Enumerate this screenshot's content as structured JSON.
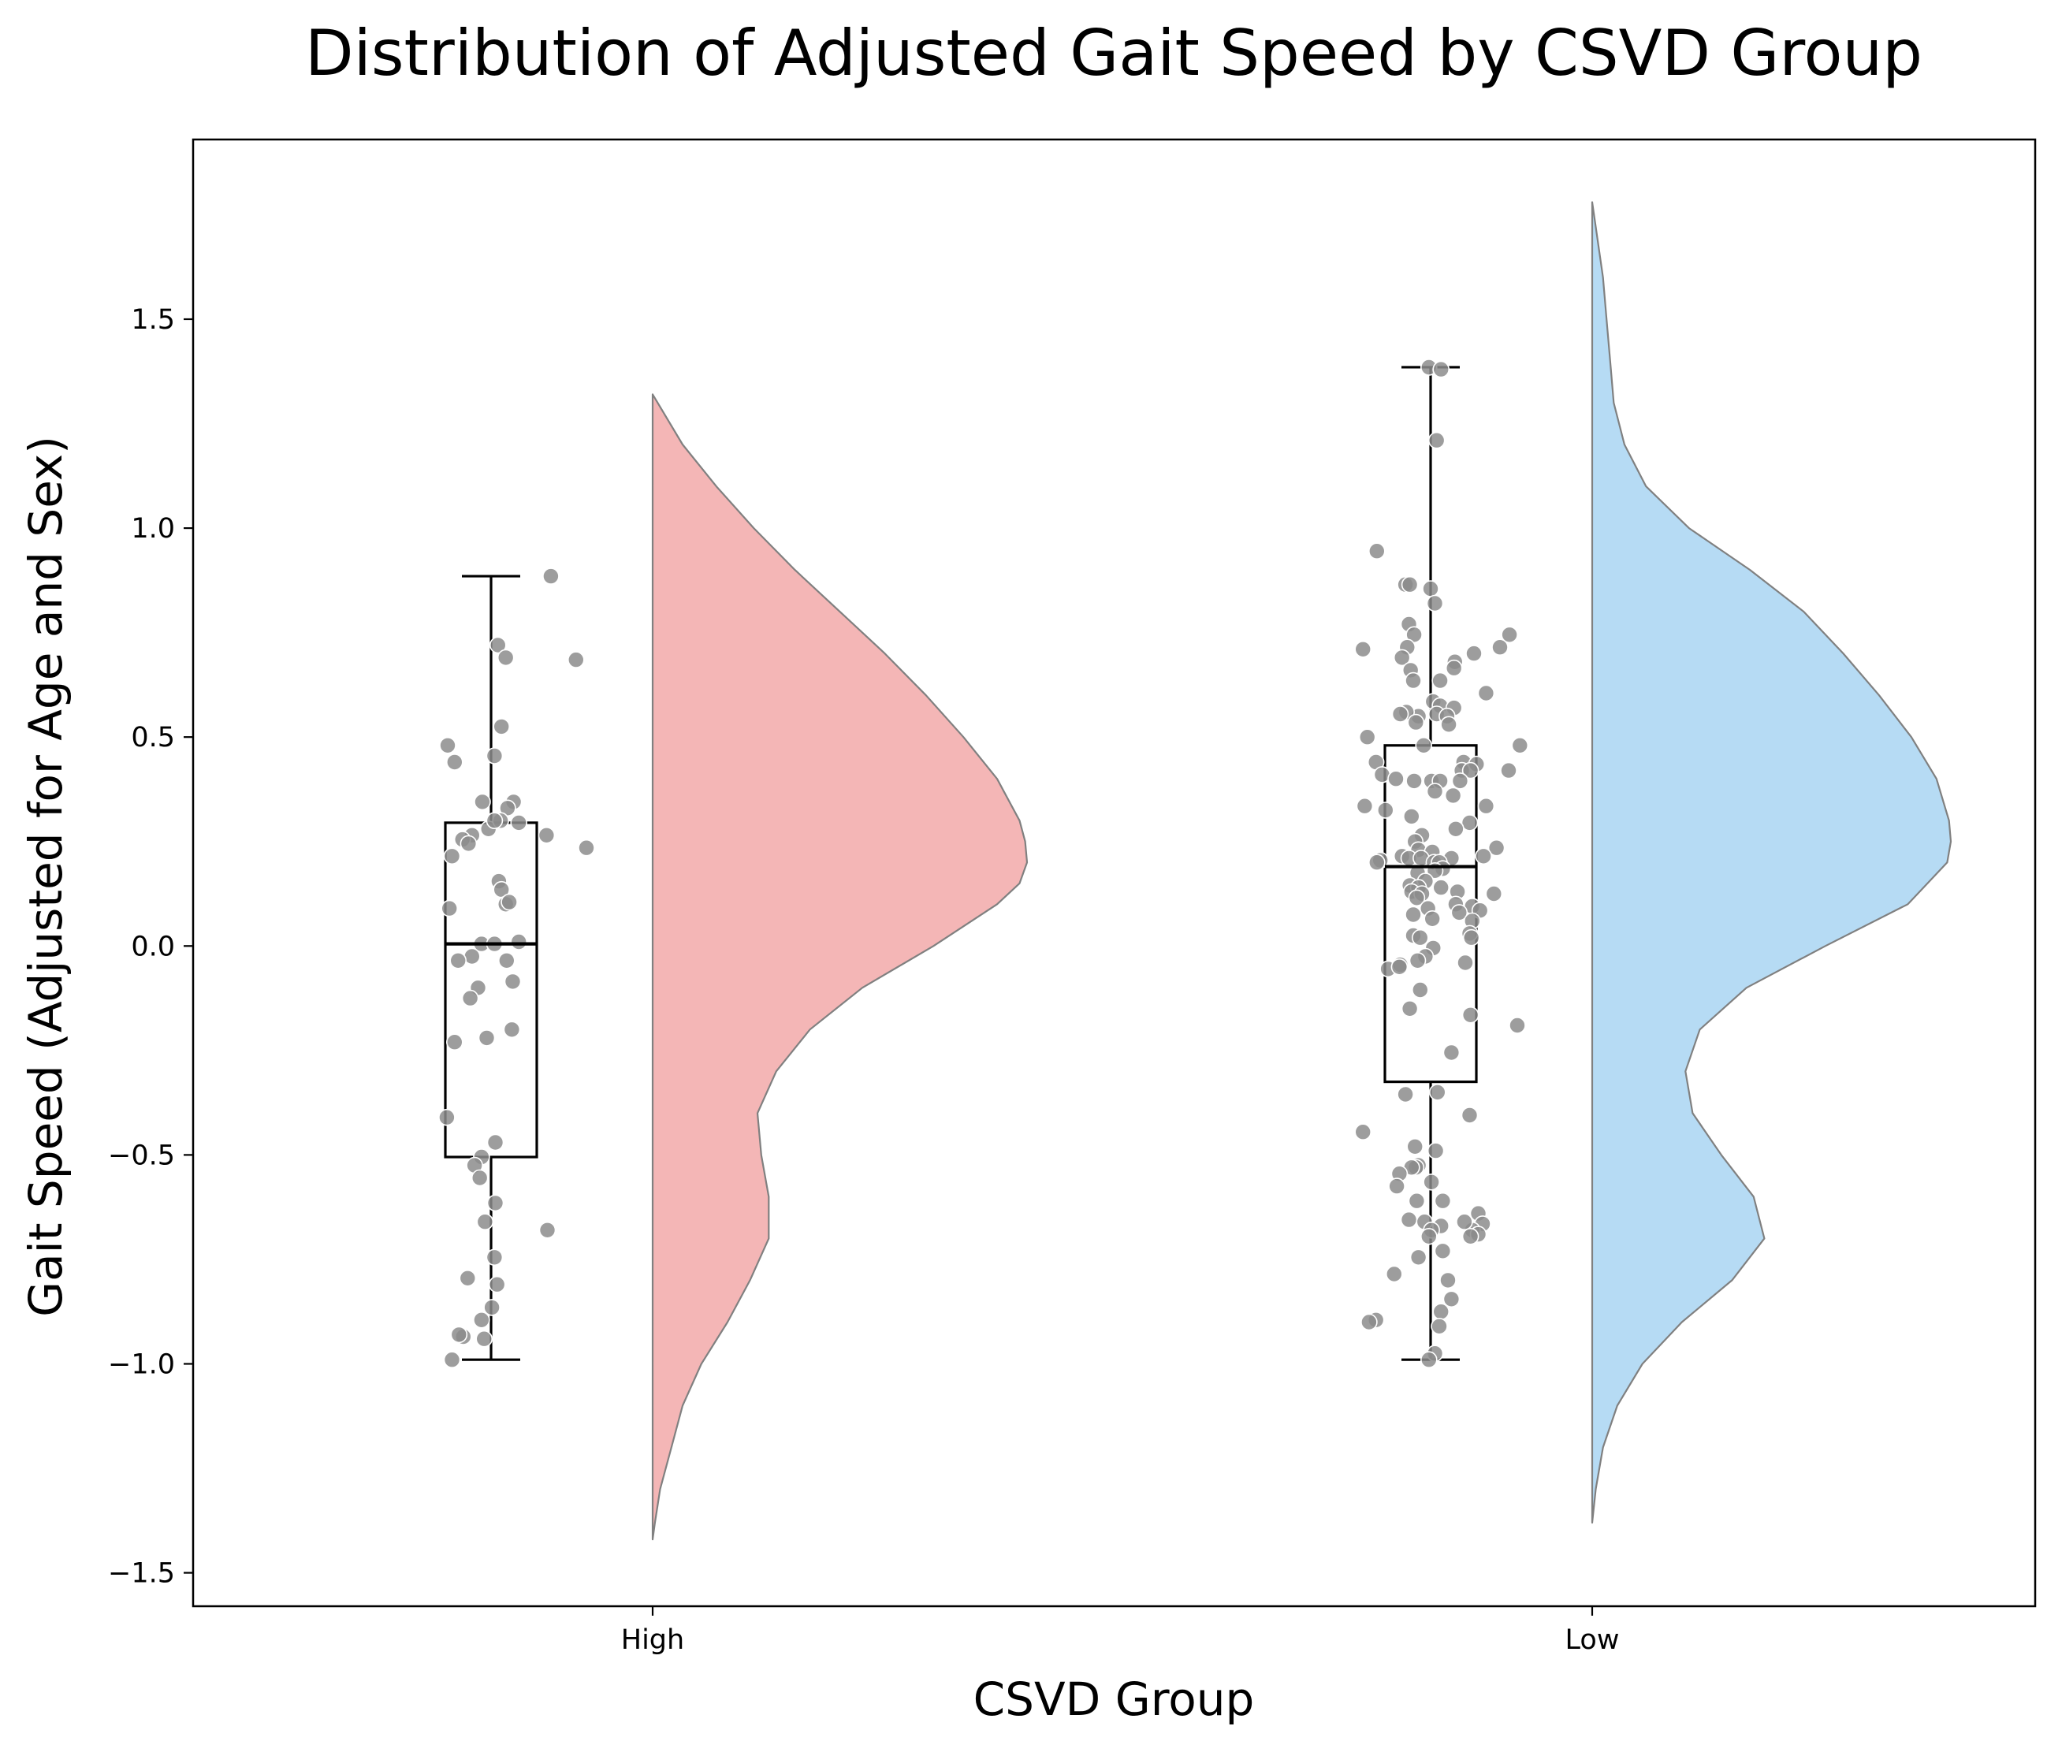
{
  "chart_data": {
    "type": "raincloud",
    "title": "Distribution of Adjusted Gait Speed by CSVD Group",
    "xlabel": "CSVD Group",
    "ylabel": "Gait Speed (Adjusted for Age and Sex)",
    "ylim": [
      -1.58,
      1.93
    ],
    "yticks": [
      -1.5,
      -1.0,
      -0.5,
      0.0,
      0.5,
      1.0,
      1.5
    ],
    "ytick_labels": [
      "−1.5",
      "−1.0",
      "−0.5",
      "0.0",
      "0.5",
      "1.0",
      "1.5"
    ],
    "categories": [
      "High",
      "Low"
    ],
    "grid": false,
    "legend": "none",
    "colors": {
      "High": "#f4b6b6",
      "Low": "#b6dbf4",
      "points": "#8c8c8c",
      "violin_edge": "#808080"
    },
    "groups": [
      {
        "name": "High",
        "box": {
          "whislo": -0.99,
          "q1": -0.505,
          "median": 0.005,
          "q3": 0.295,
          "whishi": 0.885
        },
        "density": {
          "y": [
            1.32,
            1.2,
            1.1,
            1.0,
            0.9,
            0.8,
            0.7,
            0.6,
            0.5,
            0.4,
            0.3,
            0.25,
            0.2,
            0.15,
            0.1,
            0.0,
            -0.1,
            -0.2,
            -0.3,
            -0.4,
            -0.5,
            -0.6,
            -0.7,
            -0.8,
            -0.9,
            -1.0,
            -1.1,
            -1.2,
            -1.3,
            -1.38,
            -1.42
          ],
          "width": [
            0.0,
            0.08,
            0.17,
            0.27,
            0.38,
            0.5,
            0.62,
            0.73,
            0.83,
            0.92,
            0.98,
            0.995,
            1.0,
            0.98,
            0.92,
            0.75,
            0.56,
            0.42,
            0.33,
            0.28,
            0.29,
            0.31,
            0.31,
            0.26,
            0.2,
            0.13,
            0.08,
            0.05,
            0.02,
            0.006,
            0.0
          ]
        },
        "points": [
          {
            "x": 0.69,
            "y": 0.885
          },
          {
            "x": 0.08,
            "y": 0.72
          },
          {
            "x": 0.98,
            "y": 0.685
          },
          {
            "x": 0.17,
            "y": 0.69
          },
          {
            "x": 0.12,
            "y": 0.525
          },
          {
            "x": -0.5,
            "y": 0.48
          },
          {
            "x": -0.42,
            "y": 0.44
          },
          {
            "x": 0.04,
            "y": 0.455
          },
          {
            "x": -0.1,
            "y": 0.345
          },
          {
            "x": 0.26,
            "y": 0.345
          },
          {
            "x": 0.19,
            "y": 0.33
          },
          {
            "x": 0.32,
            "y": 0.295
          },
          {
            "x": -0.03,
            "y": 0.28
          },
          {
            "x": 0.11,
            "y": 0.3
          },
          {
            "x": 0.04,
            "y": 0.3
          },
          {
            "x": -0.22,
            "y": 0.265
          },
          {
            "x": -0.33,
            "y": 0.255
          },
          {
            "x": -0.26,
            "y": 0.245
          },
          {
            "x": 0.64,
            "y": 0.265
          },
          {
            "x": 1.1,
            "y": 0.235
          },
          {
            "x": -0.45,
            "y": 0.215
          },
          {
            "x": 0.09,
            "y": 0.155
          },
          {
            "x": 0.12,
            "y": 0.135
          },
          {
            "x": 0.17,
            "y": 0.1
          },
          {
            "x": 0.21,
            "y": 0.105
          },
          {
            "x": -0.48,
            "y": 0.09
          },
          {
            "x": 0.32,
            "y": 0.01
          },
          {
            "x": -0.11,
            "y": 0.005
          },
          {
            "x": 0.04,
            "y": 0.005
          },
          {
            "x": -0.22,
            "y": -0.025
          },
          {
            "x": -0.38,
            "y": -0.035
          },
          {
            "x": 0.18,
            "y": -0.035
          },
          {
            "x": 0.25,
            "y": -0.085
          },
          {
            "x": -0.15,
            "y": -0.1
          },
          {
            "x": -0.24,
            "y": -0.125
          },
          {
            "x": 0.24,
            "y": -0.2
          },
          {
            "x": -0.05,
            "y": -0.22
          },
          {
            "x": -0.42,
            "y": -0.23
          },
          {
            "x": -0.51,
            "y": -0.41
          },
          {
            "x": 0.05,
            "y": -0.47
          },
          {
            "x": -0.11,
            "y": -0.505
          },
          {
            "x": -0.19,
            "y": -0.525
          },
          {
            "x": -0.13,
            "y": -0.555
          },
          {
            "x": 0.05,
            "y": -0.615
          },
          {
            "x": -0.07,
            "y": -0.66
          },
          {
            "x": 0.65,
            "y": -0.68
          },
          {
            "x": 0.04,
            "y": -0.745
          },
          {
            "x": 0.07,
            "y": -0.81
          },
          {
            "x": -0.27,
            "y": -0.795
          },
          {
            "x": 0.01,
            "y": -0.865
          },
          {
            "x": -0.11,
            "y": -0.895
          },
          {
            "x": -0.32,
            "y": -0.935
          },
          {
            "x": -0.37,
            "y": -0.93
          },
          {
            "x": -0.08,
            "y": -0.94
          },
          {
            "x": -0.45,
            "y": -0.99
          }
        ]
      },
      {
        "name": "Low",
        "box": {
          "whislo": -0.99,
          "q1": -0.325,
          "median": 0.19,
          "q3": 0.48,
          "whishi": 1.385
        },
        "density": {
          "y": [
            1.78,
            1.6,
            1.5,
            1.4,
            1.3,
            1.2,
            1.1,
            1.0,
            0.9,
            0.8,
            0.7,
            0.6,
            0.5,
            0.4,
            0.3,
            0.25,
            0.2,
            0.1,
            0.0,
            -0.1,
            -0.2,
            -0.3,
            -0.4,
            -0.5,
            -0.6,
            -0.7,
            -0.8,
            -0.9,
            -1.0,
            -1.1,
            -1.2,
            -1.3,
            -1.38
          ],
          "width": [
            0.0,
            0.03,
            0.04,
            0.05,
            0.06,
            0.09,
            0.15,
            0.27,
            0.44,
            0.59,
            0.7,
            0.8,
            0.89,
            0.96,
            0.995,
            1.0,
            0.99,
            0.88,
            0.65,
            0.43,
            0.3,
            0.26,
            0.28,
            0.36,
            0.45,
            0.48,
            0.39,
            0.25,
            0.14,
            0.07,
            0.03,
            0.01,
            0.0
          ]
        },
        "points": [
          {
            "x": -0.02,
            "y": 1.385
          },
          {
            "x": 0.12,
            "y": 1.38
          },
          {
            "x": 0.07,
            "y": 1.21
          },
          {
            "x": -0.62,
            "y": 0.945
          },
          {
            "x": -0.29,
            "y": 0.865
          },
          {
            "x": -0.24,
            "y": 0.865
          },
          {
            "x": 0.0,
            "y": 0.855
          },
          {
            "x": 0.05,
            "y": 0.82
          },
          {
            "x": -0.25,
            "y": 0.77
          },
          {
            "x": 0.91,
            "y": 0.745
          },
          {
            "x": -0.19,
            "y": 0.745
          },
          {
            "x": -0.27,
            "y": 0.715
          },
          {
            "x": -0.78,
            "y": 0.71
          },
          {
            "x": 0.8,
            "y": 0.715
          },
          {
            "x": 0.5,
            "y": 0.7
          },
          {
            "x": -0.33,
            "y": 0.69
          },
          {
            "x": 0.28,
            "y": 0.68
          },
          {
            "x": 0.27,
            "y": 0.665
          },
          {
            "x": -0.23,
            "y": 0.66
          },
          {
            "x": -0.2,
            "y": 0.635
          },
          {
            "x": 0.11,
            "y": 0.635
          },
          {
            "x": 0.64,
            "y": 0.605
          },
          {
            "x": 0.03,
            "y": 0.585
          },
          {
            "x": 0.11,
            "y": 0.575
          },
          {
            "x": 0.27,
            "y": 0.57
          },
          {
            "x": 0.07,
            "y": 0.555
          },
          {
            "x": -0.14,
            "y": 0.55
          },
          {
            "x": -0.28,
            "y": 0.56
          },
          {
            "x": 0.19,
            "y": 0.55
          },
          {
            "x": -0.35,
            "y": 0.555
          },
          {
            "x": -0.17,
            "y": 0.535
          },
          {
            "x": 0.21,
            "y": 0.53
          },
          {
            "x": 1.03,
            "y": 0.48
          },
          {
            "x": -0.08,
            "y": 0.48
          },
          {
            "x": -0.73,
            "y": 0.5
          },
          {
            "x": -0.63,
            "y": 0.44
          },
          {
            "x": 0.38,
            "y": 0.44
          },
          {
            "x": 0.53,
            "y": 0.435
          },
          {
            "x": 0.36,
            "y": 0.42
          },
          {
            "x": 0.46,
            "y": 0.42
          },
          {
            "x": 0.9,
            "y": 0.42
          },
          {
            "x": -0.56,
            "y": 0.41
          },
          {
            "x": -0.4,
            "y": 0.4
          },
          {
            "x": 0.34,
            "y": 0.395
          },
          {
            "x": 0.01,
            "y": 0.395
          },
          {
            "x": -0.19,
            "y": 0.395
          },
          {
            "x": 0.11,
            "y": 0.395
          },
          {
            "x": 0.05,
            "y": 0.37
          },
          {
            "x": 0.26,
            "y": 0.36
          },
          {
            "x": -0.76,
            "y": 0.335
          },
          {
            "x": 0.64,
            "y": 0.335
          },
          {
            "x": -0.52,
            "y": 0.325
          },
          {
            "x": -0.22,
            "y": 0.31
          },
          {
            "x": 0.45,
            "y": 0.295
          },
          {
            "x": 0.29,
            "y": 0.28
          },
          {
            "x": -0.1,
            "y": 0.265
          },
          {
            "x": -0.18,
            "y": 0.25
          },
          {
            "x": 0.76,
            "y": 0.235
          },
          {
            "x": -0.14,
            "y": 0.23
          },
          {
            "x": 0.02,
            "y": 0.225
          },
          {
            "x": -0.33,
            "y": 0.215
          },
          {
            "x": 0.61,
            "y": 0.215
          },
          {
            "x": -0.25,
            "y": 0.21
          },
          {
            "x": -0.11,
            "y": 0.21
          },
          {
            "x": 0.24,
            "y": 0.21
          },
          {
            "x": 0.04,
            "y": 0.2
          },
          {
            "x": -0.58,
            "y": 0.205
          },
          {
            "x": -0.62,
            "y": 0.2
          },
          {
            "x": 0.1,
            "y": 0.2
          },
          {
            "x": 0.14,
            "y": 0.185
          },
          {
            "x": -0.15,
            "y": 0.175
          },
          {
            "x": 0.05,
            "y": 0.18
          },
          {
            "x": -0.06,
            "y": 0.155
          },
          {
            "x": -0.24,
            "y": 0.145
          },
          {
            "x": -0.14,
            "y": 0.14
          },
          {
            "x": 0.12,
            "y": 0.14
          },
          {
            "x": -0.22,
            "y": 0.13
          },
          {
            "x": 0.73,
            "y": 0.125
          },
          {
            "x": -0.1,
            "y": 0.125
          },
          {
            "x": 0.31,
            "y": 0.13
          },
          {
            "x": -0.16,
            "y": 0.115
          },
          {
            "x": 0.29,
            "y": 0.1
          },
          {
            "x": 0.48,
            "y": 0.095
          },
          {
            "x": -0.03,
            "y": 0.09
          },
          {
            "x": 0.33,
            "y": 0.08
          },
          {
            "x": 0.57,
            "y": 0.085
          },
          {
            "x": -0.2,
            "y": 0.075
          },
          {
            "x": 0.48,
            "y": 0.06
          },
          {
            "x": 0.02,
            "y": 0.065
          },
          {
            "x": 0.45,
            "y": 0.03
          },
          {
            "x": -0.2,
            "y": 0.025
          },
          {
            "x": 0.47,
            "y": 0.02
          },
          {
            "x": -0.12,
            "y": 0.02
          },
          {
            "x": 0.03,
            "y": -0.005
          },
          {
            "x": -0.06,
            "y": -0.025
          },
          {
            "x": -0.15,
            "y": -0.035
          },
          {
            "x": 0.4,
            "y": -0.04
          },
          {
            "x": -0.49,
            "y": -0.055
          },
          {
            "x": -0.35,
            "y": -0.045
          },
          {
            "x": -0.36,
            "y": -0.05
          },
          {
            "x": -0.12,
            "y": -0.105
          },
          {
            "x": -0.24,
            "y": -0.15
          },
          {
            "x": 0.46,
            "y": -0.165
          },
          {
            "x": 1.0,
            "y": -0.19
          },
          {
            "x": 0.24,
            "y": -0.255
          },
          {
            "x": -0.29,
            "y": -0.355
          },
          {
            "x": 0.08,
            "y": -0.35
          },
          {
            "x": 0.45,
            "y": -0.405
          },
          {
            "x": -0.78,
            "y": -0.445
          },
          {
            "x": -0.18,
            "y": -0.48
          },
          {
            "x": 0.06,
            "y": -0.49
          },
          {
            "x": -0.14,
            "y": -0.525
          },
          {
            "x": -0.17,
            "y": -0.53
          },
          {
            "x": -0.22,
            "y": -0.53
          },
          {
            "x": -0.36,
            "y": -0.545
          },
          {
            "x": -0.39,
            "y": -0.575
          },
          {
            "x": 0.01,
            "y": -0.565
          },
          {
            "x": 0.14,
            "y": -0.61
          },
          {
            "x": -0.16,
            "y": -0.61
          },
          {
            "x": -0.25,
            "y": -0.655
          },
          {
            "x": -0.07,
            "y": -0.66
          },
          {
            "x": 0.55,
            "y": -0.64
          },
          {
            "x": 0.6,
            "y": -0.665
          },
          {
            "x": 0.48,
            "y": -0.68
          },
          {
            "x": 0.39,
            "y": -0.66
          },
          {
            "x": 0.55,
            "y": -0.69
          },
          {
            "x": 0.46,
            "y": -0.695
          },
          {
            "x": 0.12,
            "y": -0.67
          },
          {
            "x": 0.01,
            "y": -0.68
          },
          {
            "x": -0.02,
            "y": -0.695
          },
          {
            "x": 0.14,
            "y": -0.73
          },
          {
            "x": -0.14,
            "y": -0.745
          },
          {
            "x": -0.42,
            "y": -0.785
          },
          {
            "x": 0.2,
            "y": -0.8
          },
          {
            "x": 0.24,
            "y": -0.845
          },
          {
            "x": 0.12,
            "y": -0.875
          },
          {
            "x": -0.63,
            "y": -0.895
          },
          {
            "x": -0.71,
            "y": -0.9
          },
          {
            "x": 0.1,
            "y": -0.91
          },
          {
            "x": 0.05,
            "y": -0.975
          },
          {
            "x": -0.02,
            "y": -0.99
          }
        ]
      }
    ]
  }
}
